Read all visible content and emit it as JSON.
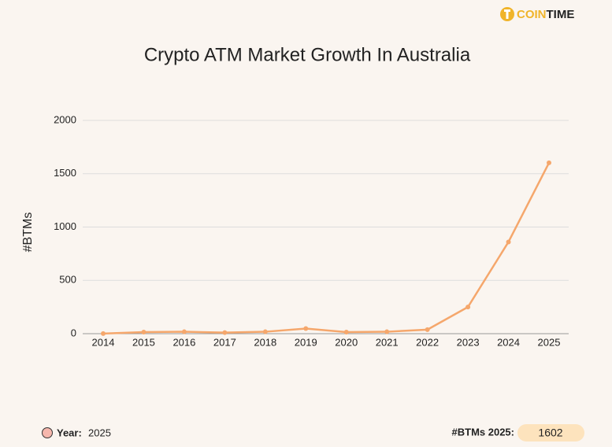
{
  "brand": {
    "part1": "COIN",
    "part2": "TIME"
  },
  "chart_data": {
    "type": "line",
    "title": "Crypto ATM Market Growth In Australia",
    "y_label": "#BTMs",
    "categories": [
      "2014",
      "2015",
      "2016",
      "2017",
      "2018",
      "2019",
      "2020",
      "2021",
      "2022",
      "2023",
      "2024",
      "2025"
    ],
    "values": [
      1,
      15,
      18,
      10,
      18,
      48,
      15,
      18,
      38,
      250,
      860,
      1602
    ],
    "color": "#f5a76c",
    "ylim": [
      0,
      2000
    ],
    "yticks": [
      0,
      500,
      1000,
      1500,
      2000
    ],
    "grid": true
  },
  "footer": {
    "year_label": "Year:",
    "year": "2025",
    "value_label": "#BTMs 2025:",
    "value": "1602"
  }
}
